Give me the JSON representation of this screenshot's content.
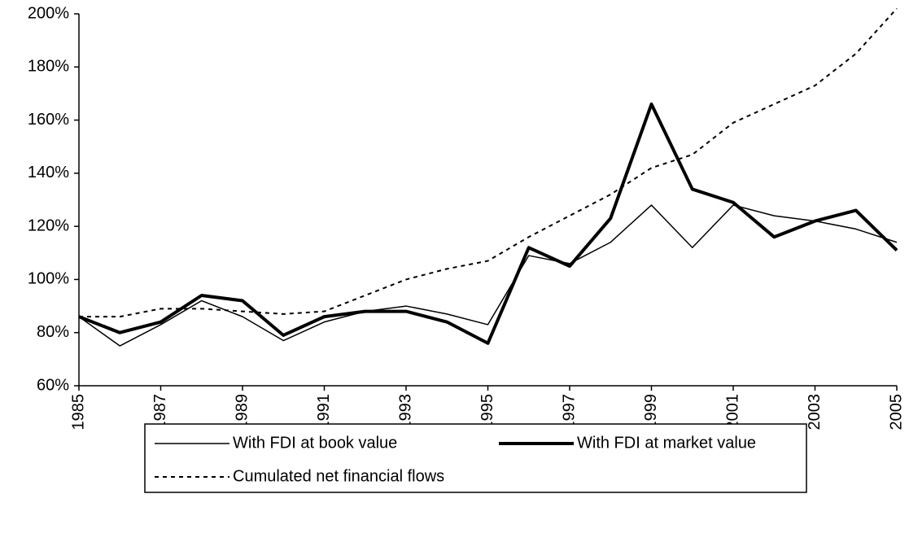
{
  "chart_data": {
    "type": "line",
    "x": [
      1985,
      1986,
      1987,
      1988,
      1989,
      1990,
      1991,
      1992,
      1993,
      1994,
      1995,
      1996,
      1997,
      1998,
      1999,
      2000,
      2001,
      2002,
      2003,
      2004,
      2005
    ],
    "series": [
      {
        "name": "With FDI at book value",
        "color": "#000000",
        "line_width": 1.5,
        "line_style": "solid",
        "values": [
          86,
          75,
          83,
          92,
          86,
          77,
          84,
          88,
          90,
          87,
          83,
          109,
          106,
          114,
          128,
          112,
          128,
          124,
          122,
          119,
          114
        ]
      },
      {
        "name": "With FDI at market value",
        "color": "#000000",
        "line_width": 4,
        "line_style": "solid",
        "values": [
          86,
          80,
          84,
          94,
          92,
          79,
          86,
          88,
          88,
          84,
          76,
          112,
          105,
          123,
          166,
          134,
          129,
          116,
          122,
          126,
          111
        ]
      },
      {
        "name": "Cumulated net financial flows",
        "color": "#000000",
        "line_width": 2,
        "line_style": "dotted",
        "values": [
          86,
          86,
          89,
          89,
          88,
          87,
          88,
          94,
          100,
          104,
          107,
          116,
          124,
          132,
          142,
          147,
          159,
          166,
          173,
          185,
          202
        ]
      }
    ],
    "xlim": [
      1985,
      2005
    ],
    "xticks": [
      1985,
      1987,
      1989,
      1991,
      1993,
      1995,
      1997,
      1999,
      2001,
      2003,
      2005
    ],
    "ylim": [
      60,
      200
    ],
    "yticks": [
      {
        "value": 60,
        "label": "60%"
      },
      {
        "value": 80,
        "label": "80%"
      },
      {
        "value": 100,
        "label": "100%"
      },
      {
        "value": 120,
        "label": "120%"
      },
      {
        "value": 140,
        "label": "140%"
      },
      {
        "value": 160,
        "label": "160%"
      },
      {
        "value": 180,
        "label": "180%"
      },
      {
        "value": 200,
        "label": "200%"
      }
    ],
    "grid": false,
    "legend": "bottom"
  }
}
